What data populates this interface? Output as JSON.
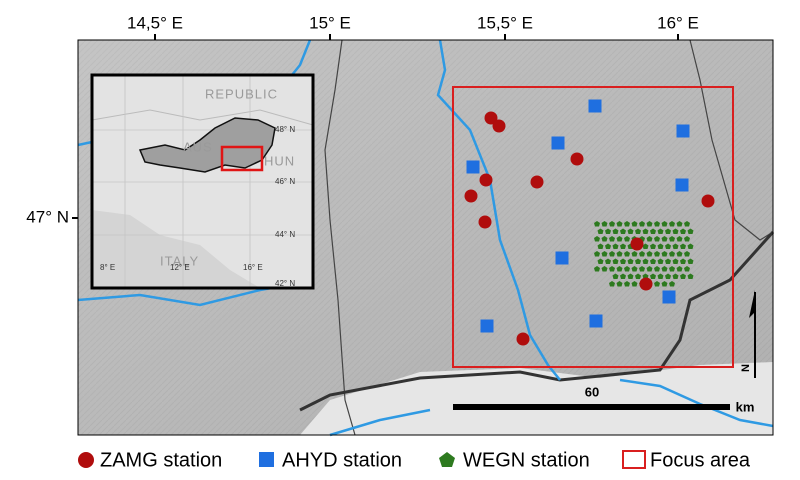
{
  "map": {
    "lon_labels": [
      "14,5° E",
      "15° E",
      "15,5° E",
      "16° E"
    ],
    "lat_labels": [
      "47° N"
    ],
    "inset": {
      "countries": [
        "REPUBLIC",
        "AUS",
        "HUN",
        "ITALY"
      ],
      "lat_labels": [
        "48° N",
        "46° N",
        "44° N",
        "42° N"
      ],
      "lon_labels": [
        "8° E",
        "12° E",
        "16° E"
      ]
    },
    "scale_bar": {
      "distance": "60",
      "unit": "km"
    },
    "north_arrow": "N"
  },
  "legend": [
    "ZAMG station",
    "AHYD station",
    "WEGN station",
    "Focus area"
  ]
}
